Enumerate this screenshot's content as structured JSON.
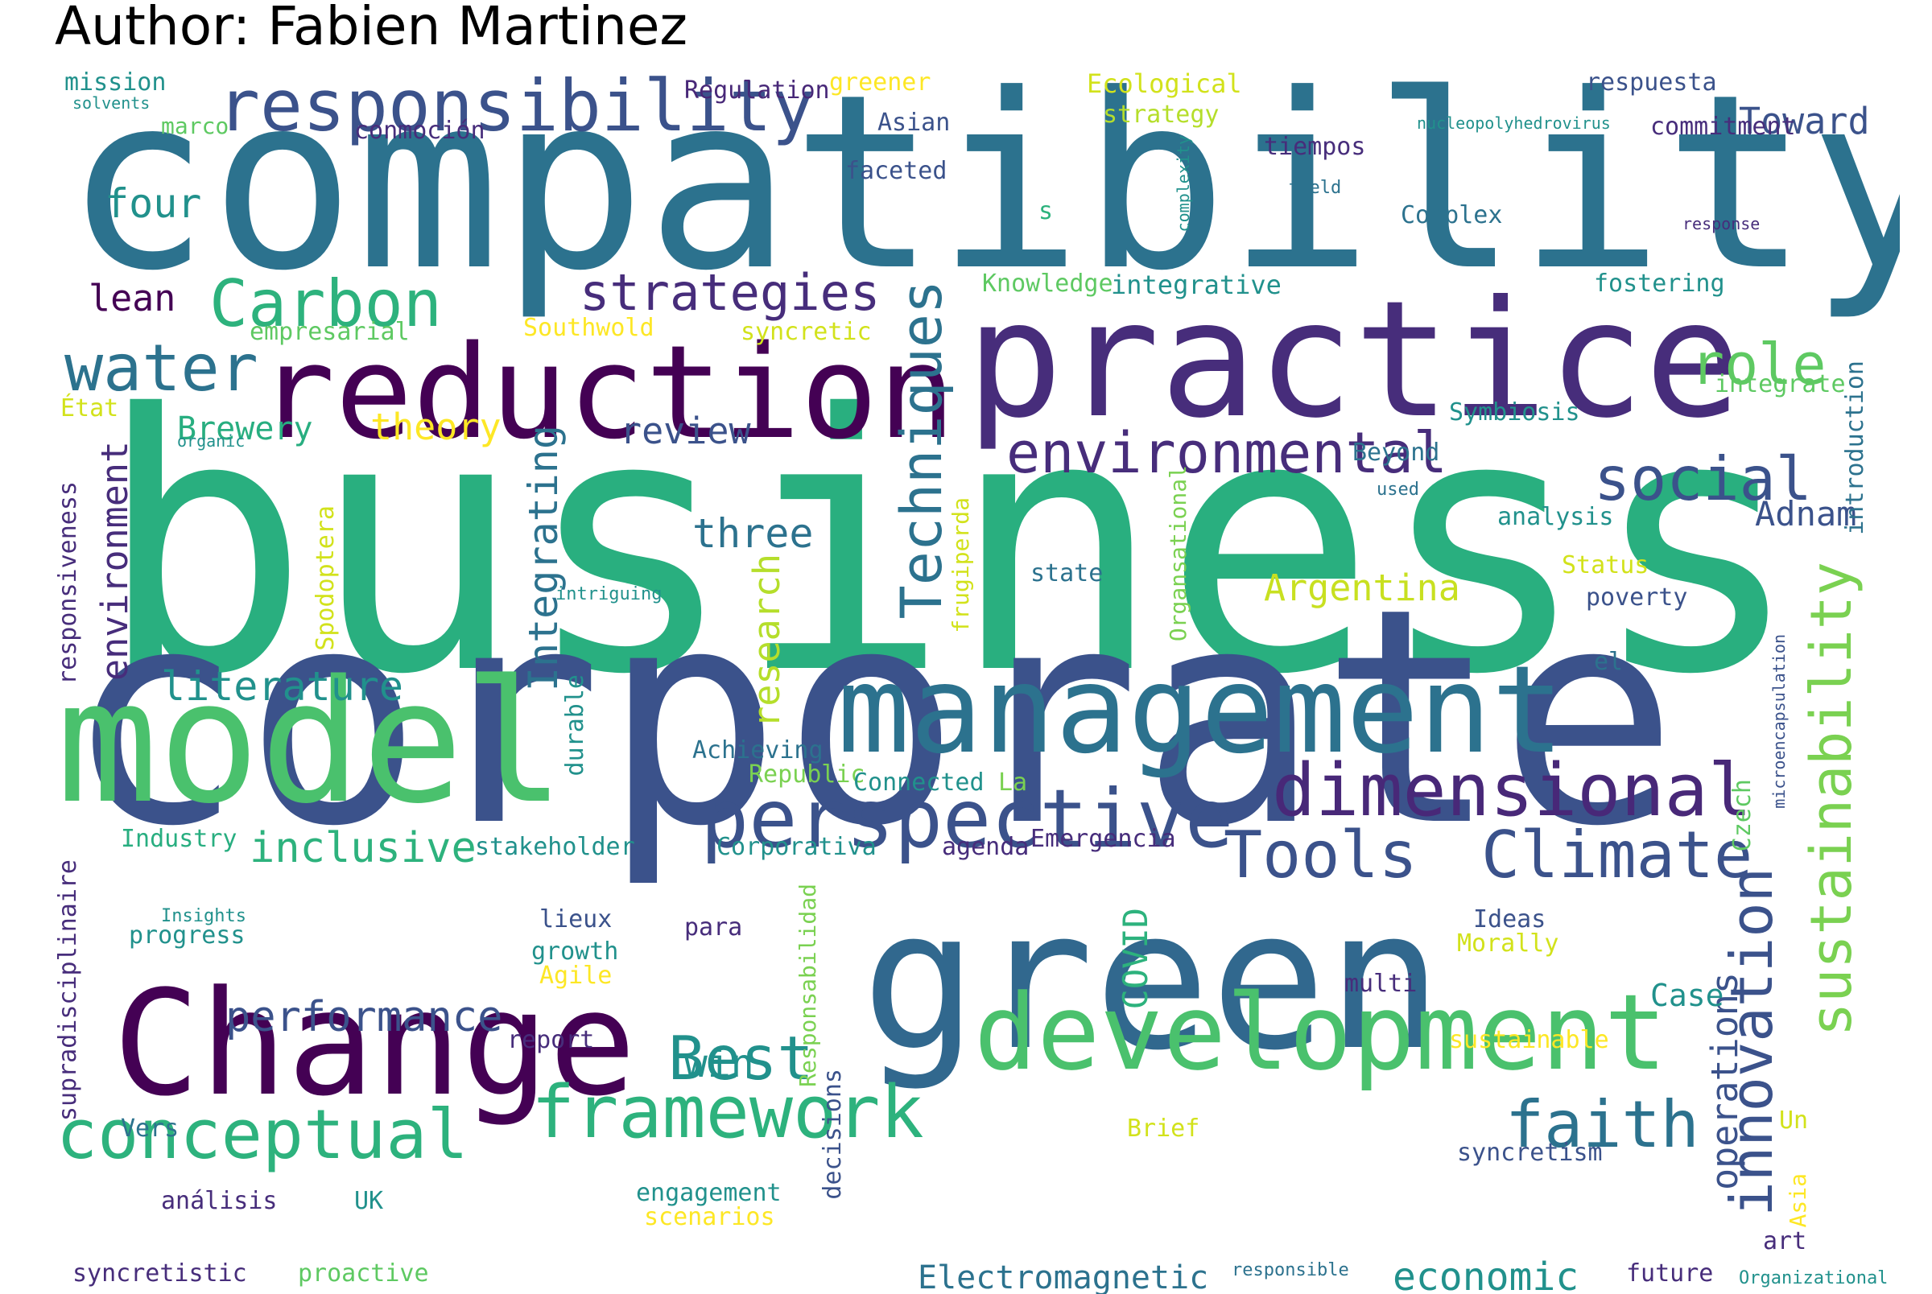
{
  "title": "Author: Fabien Martinez",
  "palette": {
    "dark_purple": "#440154",
    "indigo": "#472d7b",
    "deep_blue": "#3b528b",
    "blue": "#2c728e",
    "teal": "#21918c",
    "green_teal": "#28ae80",
    "green": "#5ec962",
    "lime": "#addc30",
    "yellow": "#fde725"
  },
  "words": [
    {
      "text": "business",
      "color": "#29af7f"
    },
    {
      "text": "compatibility",
      "color": "#2c728e"
    },
    {
      "text": "corporate",
      "color": "#3b528b"
    },
    {
      "text": "model",
      "color": "#4ac16d"
    },
    {
      "text": "green",
      "color": "#31688e"
    },
    {
      "text": "practice",
      "color": "#472d7b"
    },
    {
      "text": "management",
      "color": "#2c728e"
    },
    {
      "text": "Change",
      "color": "#440154"
    },
    {
      "text": "reduction",
      "color": "#440154"
    },
    {
      "text": "development",
      "color": "#4ac16d"
    },
    {
      "text": "perspective",
      "color": "#3b528b"
    },
    {
      "text": "responsibility",
      "color": "#3b528b"
    },
    {
      "text": "dimensional",
      "color": "#482878"
    },
    {
      "text": "framework",
      "color": "#2db27d"
    },
    {
      "text": "conceptual",
      "color": "#2db27d"
    },
    {
      "text": "environmental",
      "color": "#472d7b"
    },
    {
      "text": "Climate",
      "color": "#3b528b"
    },
    {
      "text": "Tools",
      "color": "#3b528b"
    },
    {
      "text": "water",
      "color": "#2c728e"
    },
    {
      "text": "Carbon",
      "color": "#2db27d"
    },
    {
      "text": "faith",
      "color": "#2c728e"
    },
    {
      "text": "Best",
      "color": "#21918c"
    },
    {
      "text": "social",
      "color": "#3b528b"
    },
    {
      "text": "strategies",
      "color": "#472d7b"
    },
    {
      "text": "role",
      "color": "#5ec962"
    },
    {
      "text": "Techniques",
      "color": "#2c728e"
    },
    {
      "text": "sustainability",
      "color": "#7ad151"
    },
    {
      "text": "innovation",
      "color": "#3b528b"
    },
    {
      "text": "inclusive",
      "color": "#2db27d"
    },
    {
      "text": "performance",
      "color": "#3b528b"
    },
    {
      "text": "economic",
      "color": "#21918c"
    },
    {
      "text": "Electromagnetic",
      "color": "#2c728e"
    },
    {
      "text": "literature",
      "color": "#21918c"
    },
    {
      "text": "environment",
      "color": "#472d7b"
    },
    {
      "text": "Integrating",
      "color": "#2c728e"
    },
    {
      "text": "review",
      "color": "#3b528b"
    },
    {
      "text": "three",
      "color": "#2c728e"
    },
    {
      "text": "four",
      "color": "#21918c"
    },
    {
      "text": "lean",
      "color": "#440154"
    },
    {
      "text": "theory",
      "color": "#fde725"
    },
    {
      "text": "Brewery",
      "color": "#28ae80"
    },
    {
      "text": "research",
      "color": "#b5de2b"
    },
    {
      "text": "Argentina",
      "color": "#c8e020"
    },
    {
      "text": "operations",
      "color": "#3b528b"
    },
    {
      "text": "Toward",
      "color": "#3b528b"
    },
    {
      "text": "Adnam",
      "color": "#3b528b"
    },
    {
      "text": "COVID",
      "color": "#2db27d"
    },
    {
      "text": "win",
      "color": "#21918c"
    },
    {
      "text": "Case",
      "color": "#21918c"
    },
    {
      "text": "mission",
      "color": "#21918c"
    },
    {
      "text": "solvents",
      "color": "#21918c"
    },
    {
      "text": "marco",
      "color": "#5ec962"
    },
    {
      "text": "conmoción",
      "color": "#472d7b"
    },
    {
      "text": "Regulation",
      "color": "#482878"
    },
    {
      "text": "greener",
      "color": "#fde725"
    },
    {
      "text": "Asian",
      "color": "#3b528b"
    },
    {
      "text": "faceted",
      "color": "#3b528b"
    },
    {
      "text": "Ecological",
      "color": "#d2e21b"
    },
    {
      "text": "strategy",
      "color": "#b5de2b"
    },
    {
      "text": "complexity",
      "color": "#21918c"
    },
    {
      "text": "tiempos",
      "color": "#472d7b"
    },
    {
      "text": "field",
      "color": "#2c728e"
    },
    {
      "text": "respuesta",
      "color": "#3b528b"
    },
    {
      "text": "nucleopolyhedrovirus",
      "color": "#21918c"
    },
    {
      "text": "commitment",
      "color": "#472d7b"
    },
    {
      "text": "response",
      "color": "#472d7b"
    },
    {
      "text": "Complex",
      "color": "#2c728e"
    },
    {
      "text": "s",
      "color": "#2db27d"
    },
    {
      "text": "Knowledge",
      "color": "#5ec962"
    },
    {
      "text": "integrative",
      "color": "#21918c"
    },
    {
      "text": "fostering",
      "color": "#21918c"
    },
    {
      "text": "empresarial",
      "color": "#5ec962"
    },
    {
      "text": "Southwold",
      "color": "#fde725"
    },
    {
      "text": "syncretic",
      "color": "#d2e21b"
    },
    {
      "text": "integrate",
      "color": "#5ec962"
    },
    {
      "text": "introduction",
      "color": "#2c728e"
    },
    {
      "text": "État",
      "color": "#d2e21b"
    },
    {
      "text": "organic",
      "color": "#21918c"
    },
    {
      "text": "Symbiosis",
      "color": "#21918c"
    },
    {
      "text": "Beyond",
      "color": "#2c728e"
    },
    {
      "text": "used",
      "color": "#2c728e"
    },
    {
      "text": "analysis",
      "color": "#21918c"
    },
    {
      "text": "Organsational",
      "color": "#7ad151"
    },
    {
      "text": "frugiperda",
      "color": "#d2e21b"
    },
    {
      "text": "state",
      "color": "#2c728e"
    },
    {
      "text": "Status",
      "color": "#d2e21b"
    },
    {
      "text": "poverty",
      "color": "#3b528b"
    },
    {
      "text": "responsiveness",
      "color": "#472d7b"
    },
    {
      "text": "Spodoptera",
      "color": "#d2e21b"
    },
    {
      "text": "intriguing",
      "color": "#21918c"
    },
    {
      "text": "el",
      "color": "#2c728e"
    },
    {
      "text": "microencapsulation",
      "color": "#3b528b"
    },
    {
      "text": "durable",
      "color": "#21918c"
    },
    {
      "text": "Achieving",
      "color": "#2c728e"
    },
    {
      "text": "Republic",
      "color": "#7ad151"
    },
    {
      "text": "Connected",
      "color": "#21918c"
    },
    {
      "text": "La",
      "color": "#7ad151"
    },
    {
      "text": "Czech",
      "color": "#5ec962"
    },
    {
      "text": "Industry",
      "color": "#28ae80"
    },
    {
      "text": "stakeholder",
      "color": "#21918c"
    },
    {
      "text": "Corporativa",
      "color": "#21918c"
    },
    {
      "text": "agenda",
      "color": "#472d7b"
    },
    {
      "text": "Emergencia",
      "color": "#472d7b"
    },
    {
      "text": "supradisciplinaire",
      "color": "#472d7b"
    },
    {
      "text": "Insights",
      "color": "#21918c"
    },
    {
      "text": "progress",
      "color": "#21918c"
    },
    {
      "text": "lieux",
      "color": "#3b528b"
    },
    {
      "text": "growth",
      "color": "#21918c"
    },
    {
      "text": "Agile",
      "color": "#fde725"
    },
    {
      "text": "para",
      "color": "#472d7b"
    },
    {
      "text": "Responsabilidad",
      "color": "#7ad151"
    },
    {
      "text": "Ideas",
      "color": "#3b528b"
    },
    {
      "text": "Morally",
      "color": "#d2e21b"
    },
    {
      "text": "multi",
      "color": "#472d7b"
    },
    {
      "text": "report",
      "color": "#472d7b"
    },
    {
      "text": "decisions",
      "color": "#3b528b"
    },
    {
      "text": "sustainable",
      "color": "#fde725"
    },
    {
      "text": "Vers",
      "color": "#2c728e"
    },
    {
      "text": "Brief",
      "color": "#d2e21b"
    },
    {
      "text": "Un",
      "color": "#d2e21b"
    },
    {
      "text": "syncretism",
      "color": "#3b528b"
    },
    {
      "text": "análisis",
      "color": "#472d7b"
    },
    {
      "text": "UK",
      "color": "#21918c"
    },
    {
      "text": "engagement",
      "color": "#21918c"
    },
    {
      "text": "scenarios",
      "color": "#fde725"
    },
    {
      "text": "Asia",
      "color": "#fde725"
    },
    {
      "text": "art",
      "color": "#472d7b"
    },
    {
      "text": "syncretistic",
      "color": "#472d7b"
    },
    {
      "text": "proactive",
      "color": "#5ec962"
    },
    {
      "text": "responsible",
      "color": "#2c728e"
    },
    {
      "text": "future",
      "color": "#472d7b"
    },
    {
      "text": "Organizational",
      "color": "#21918c"
    }
  ]
}
